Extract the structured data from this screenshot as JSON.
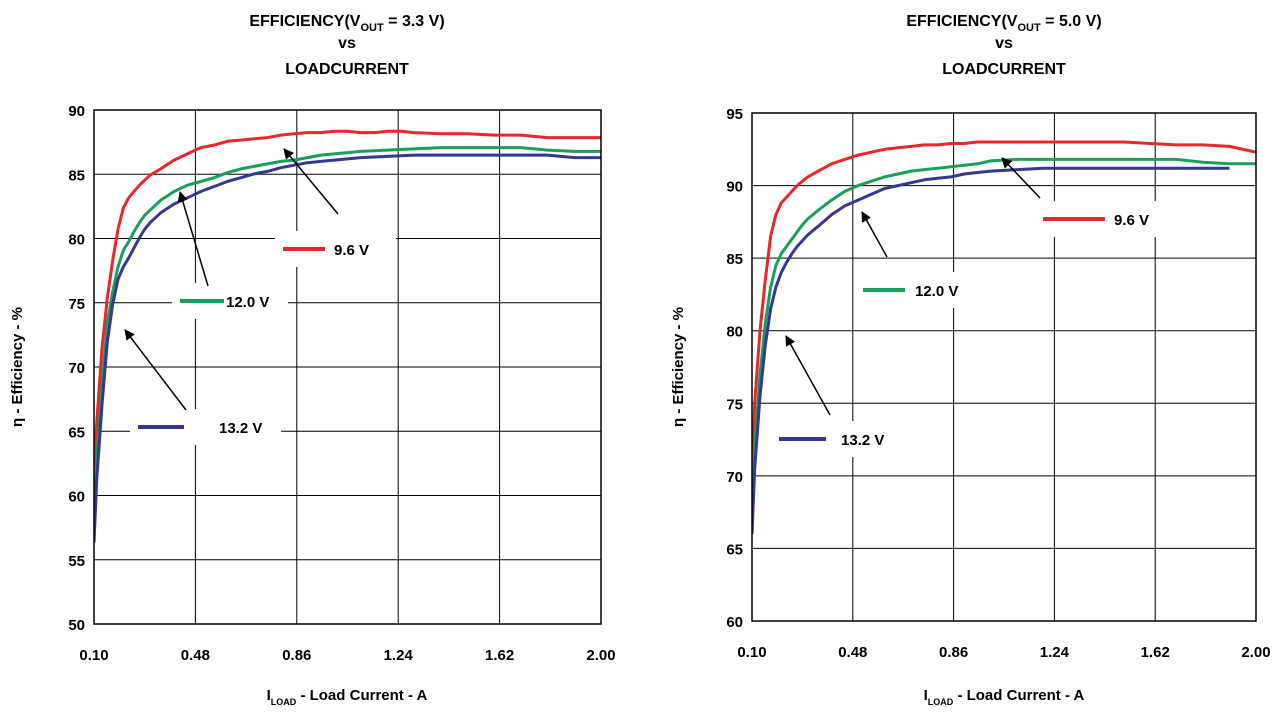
{
  "chart_data": [
    {
      "type": "line",
      "title": {
        "pre": "EFFICIENCY(V",
        "sub": "OUT",
        "post": " = 3.3 V)",
        "line2": "vs",
        "line3": "LOADCURRENT"
      },
      "xlabel": {
        "main": "I",
        "sub": "LOAD",
        "rest": " - Load Current - A"
      },
      "ylabel": "η  - Efficiency - %",
      "x_ticks": [
        "0.10",
        "0.48",
        "0.86",
        "1.24",
        "1.62",
        "2.00"
      ],
      "y_ticks": [
        "50",
        "55",
        "60",
        "65",
        "70",
        "75",
        "80",
        "85",
        "90"
      ],
      "xlim": [
        0.1,
        2.0
      ],
      "ylim": [
        50,
        91
      ],
      "grid": true,
      "series": [
        {
          "name": "9.6 V",
          "color": "#e8272a",
          "x": [
            0.1,
            0.11,
            0.13,
            0.15,
            0.17,
            0.19,
            0.21,
            0.23,
            0.25,
            0.27,
            0.29,
            0.31,
            0.35,
            0.4,
            0.45,
            0.5,
            0.55,
            0.6,
            0.65,
            0.7,
            0.75,
            0.8,
            0.85,
            0.9,
            0.95,
            1.0,
            1.05,
            1.1,
            1.15,
            1.2,
            1.25,
            1.3,
            1.4,
            1.5,
            1.6,
            1.7,
            1.8,
            1.9,
            2.0
          ],
          "y": [
            62.5,
            66,
            72,
            76,
            79,
            81.5,
            83.2,
            84,
            84.5,
            85,
            85.4,
            85.8,
            86.3,
            87,
            87.5,
            88,
            88.2,
            88.5,
            88.6,
            88.7,
            88.8,
            89,
            89.1,
            89.2,
            89.2,
            89.3,
            89.3,
            89.2,
            89.2,
            89.3,
            89.3,
            89.2,
            89.1,
            89.1,
            89,
            89,
            88.8,
            88.8,
            88.8
          ]
        },
        {
          "name": "12.0 V",
          "color": "#1a9e5c",
          "x": [
            0.1,
            0.11,
            0.13,
            0.15,
            0.17,
            0.19,
            0.21,
            0.23,
            0.25,
            0.27,
            0.29,
            0.31,
            0.35,
            0.4,
            0.45,
            0.5,
            0.55,
            0.6,
            0.65,
            0.7,
            0.75,
            0.8,
            0.85,
            0.9,
            0.95,
            1.0,
            1.05,
            1.1,
            1.2,
            1.3,
            1.4,
            1.5,
            1.6,
            1.7,
            1.8,
            1.9,
            2.0
          ],
          "y": [
            58.5,
            63,
            69,
            74,
            76.5,
            78.5,
            79.8,
            80.5,
            81.3,
            82,
            82.6,
            83,
            83.8,
            84.5,
            85,
            85.3,
            85.6,
            86,
            86.3,
            86.5,
            86.7,
            86.9,
            87,
            87.2,
            87.4,
            87.5,
            87.6,
            87.7,
            87.8,
            87.9,
            88,
            88,
            88,
            88,
            87.8,
            87.7,
            87.7
          ]
        },
        {
          "name": "13.2 V",
          "color": "#34388f",
          "x": [
            0.1,
            0.11,
            0.13,
            0.15,
            0.17,
            0.19,
            0.21,
            0.23,
            0.25,
            0.27,
            0.29,
            0.31,
            0.35,
            0.4,
            0.45,
            0.5,
            0.55,
            0.6,
            0.65,
            0.7,
            0.75,
            0.8,
            0.85,
            0.9,
            0.95,
            1.0,
            1.05,
            1.1,
            1.2,
            1.3,
            1.4,
            1.5,
            1.6,
            1.7,
            1.8,
            1.9,
            2.0
          ],
          "y": [
            56.5,
            61.5,
            67.5,
            72.5,
            75.5,
            77.5,
            78.5,
            79.2,
            80,
            80.8,
            81.5,
            82,
            82.8,
            83.5,
            84,
            84.5,
            84.9,
            85.3,
            85.6,
            85.9,
            86.1,
            86.4,
            86.6,
            86.8,
            86.9,
            87,
            87.1,
            87.2,
            87.3,
            87.4,
            87.4,
            87.4,
            87.4,
            87.4,
            87.4,
            87.2,
            87.2
          ]
        }
      ],
      "annotations": [
        "9.6 V",
        "12.0 V",
        "13.2 V"
      ]
    },
    {
      "type": "line",
      "title": {
        "pre": "EFFICIENCY(V",
        "sub": "OUT",
        "post": " = 5.0 V)",
        "line2": "vs",
        "line3": "LOADCURRENT"
      },
      "xlabel": {
        "main": "I",
        "sub": "LOAD",
        "rest": " - Load Current - A"
      },
      "ylabel": "η  - Efficiency - %",
      "x_ticks": [
        "0.10",
        "0.48",
        "0.86",
        "1.24",
        "1.62",
        "2.00"
      ],
      "y_ticks": [
        "60",
        "65",
        "70",
        "75",
        "80",
        "85",
        "90",
        "95"
      ],
      "xlim": [
        0.1,
        2.0
      ],
      "ylim": [
        60,
        95
      ],
      "grid": true,
      "series": [
        {
          "name": "9.6 V",
          "color": "#e8272a",
          "x": [
            0.1,
            0.11,
            0.13,
            0.15,
            0.17,
            0.19,
            0.21,
            0.23,
            0.25,
            0.27,
            0.29,
            0.31,
            0.35,
            0.4,
            0.45,
            0.5,
            0.55,
            0.6,
            0.65,
            0.7,
            0.75,
            0.8,
            0.85,
            0.9,
            0.95,
            1.0,
            1.1,
            1.2,
            1.3,
            1.4,
            1.5,
            1.6,
            1.7,
            1.8,
            1.9,
            2.0
          ],
          "y": [
            70.5,
            75,
            80,
            83.5,
            86.5,
            88,
            88.8,
            89.2,
            89.6,
            90,
            90.3,
            90.6,
            91,
            91.5,
            91.8,
            92.1,
            92.3,
            92.5,
            92.6,
            92.7,
            92.8,
            92.8,
            92.9,
            92.9,
            93,
            93,
            93,
            93,
            93,
            93,
            93,
            92.9,
            92.8,
            92.8,
            92.7,
            92.3
          ]
        },
        {
          "name": "12.0 V",
          "color": "#1a9e5c",
          "x": [
            0.1,
            0.11,
            0.13,
            0.15,
            0.17,
            0.19,
            0.21,
            0.23,
            0.25,
            0.27,
            0.29,
            0.31,
            0.35,
            0.4,
            0.45,
            0.5,
            0.55,
            0.6,
            0.65,
            0.7,
            0.75,
            0.8,
            0.85,
            0.9,
            0.95,
            1.0,
            1.1,
            1.2,
            1.3,
            1.4,
            1.5,
            1.6,
            1.7,
            1.8,
            1.9,
            2.0
          ],
          "y": [
            68,
            72,
            77,
            80.5,
            83,
            84.5,
            85.3,
            85.8,
            86.3,
            86.8,
            87.3,
            87.7,
            88.3,
            89,
            89.6,
            90,
            90.3,
            90.6,
            90.8,
            91,
            91.1,
            91.2,
            91.3,
            91.4,
            91.5,
            91.7,
            91.8,
            91.8,
            91.8,
            91.8,
            91.8,
            91.8,
            91.8,
            91.6,
            91.5,
            91.5
          ]
        },
        {
          "name": "13.2 V",
          "color": "#34388f",
          "x": [
            0.1,
            0.11,
            0.13,
            0.15,
            0.17,
            0.19,
            0.21,
            0.23,
            0.25,
            0.27,
            0.29,
            0.31,
            0.35,
            0.4,
            0.45,
            0.5,
            0.55,
            0.6,
            0.65,
            0.7,
            0.75,
            0.8,
            0.85,
            0.9,
            0.95,
            1.0,
            1.1,
            1.2,
            1.3,
            1.4,
            1.5,
            1.6,
            1.7,
            1.8,
            1.9
          ],
          "y": [
            66,
            70.5,
            75.5,
            79,
            81.5,
            83,
            84,
            84.7,
            85.3,
            85.8,
            86.2,
            86.6,
            87.2,
            88,
            88.6,
            89,
            89.4,
            89.8,
            90,
            90.2,
            90.4,
            90.5,
            90.6,
            90.8,
            90.9,
            91,
            91.1,
            91.2,
            91.2,
            91.2,
            91.2,
            91.2,
            91.2,
            91.2,
            91.2
          ]
        }
      ],
      "annotations": [
        "9.6 V",
        "12.0 V",
        "13.2 V"
      ]
    }
  ]
}
